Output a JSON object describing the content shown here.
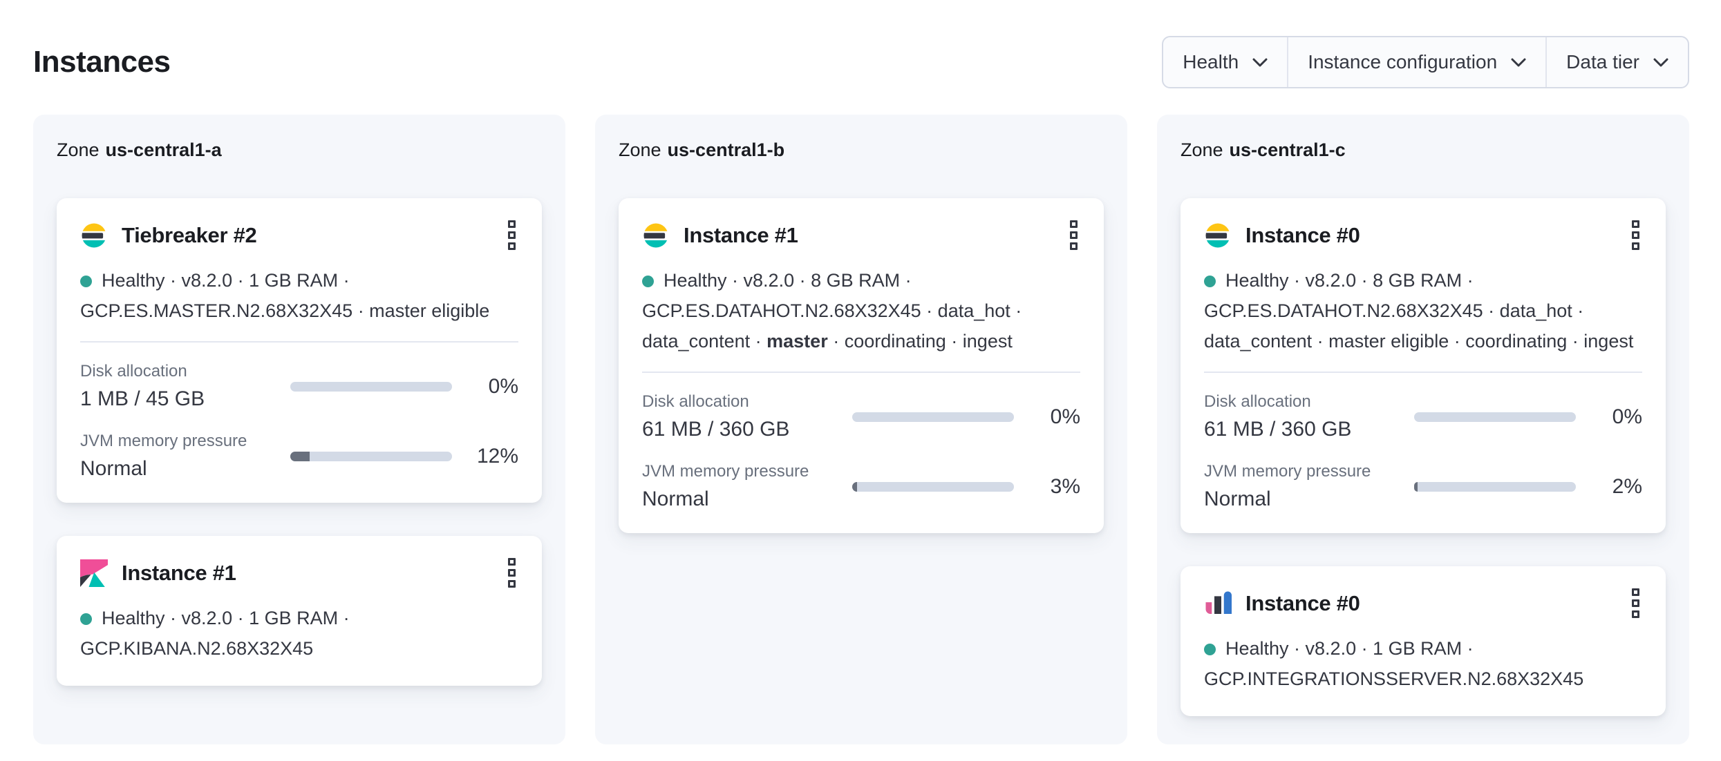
{
  "header": {
    "title": "Instances"
  },
  "filters": [
    {
      "label": "Health"
    },
    {
      "label": "Instance configuration"
    },
    {
      "label": "Data tier"
    }
  ],
  "colors": {
    "healthy_dot": "#2fa294",
    "progress_track": "#d3dae6",
    "progress_fill": "#69707d",
    "panel_background": "#f5f7fb",
    "elastic_yellow": "#fec514",
    "elastic_dark": "#343741",
    "elastic_teal": "#00bfb3",
    "kibana_pink": "#f04e98",
    "integrations_pink": "#e05c97",
    "integrations_blue": "#3377cc"
  },
  "zones": [
    {
      "label_prefix": "Zone",
      "name": "us-central1-a",
      "cards": [
        {
          "icon": "elasticsearch-logo",
          "title": "Tiebreaker #2",
          "status_lines": [
            "Healthy · v8.2.0 · 1 GB RAM ·",
            "GCP.ES.MASTER.N2.68X32X45 · master eligible"
          ],
          "metrics": {
            "disk": {
              "label": "Disk allocation",
              "value": "1 MB / 45 GB",
              "percent": "0%",
              "fraction": 0
            },
            "jvm": {
              "label": "JVM memory pressure",
              "value": "Normal",
              "percent": "12%",
              "fraction": 12
            }
          }
        },
        {
          "icon": "kibana-logo",
          "title": "Instance #1",
          "status_lines": [
            "Healthy · v8.2.0 · 1 GB RAM ·",
            "GCP.KIBANA.N2.68X32X45"
          ]
        }
      ]
    },
    {
      "label_prefix": "Zone",
      "name": "us-central1-b",
      "cards": [
        {
          "icon": "elasticsearch-logo",
          "title": "Instance #1",
          "status_lines": [
            "Healthy · v8.2.0 · 8 GB RAM ·",
            "GCP.ES.DATAHOT.N2.68X32X45 · data_hot ·"
          ],
          "status_extra": {
            "pre": "data_content · ",
            "bold": "master",
            "post": " · coordinating · ingest"
          },
          "metrics": {
            "disk": {
              "label": "Disk allocation",
              "value": "61 MB / 360 GB",
              "percent": "0%",
              "fraction": 0
            },
            "jvm": {
              "label": "JVM memory pressure",
              "value": "Normal",
              "percent": "3%",
              "fraction": 3
            }
          }
        }
      ]
    },
    {
      "label_prefix": "Zone",
      "name": "us-central1-c",
      "cards": [
        {
          "icon": "elasticsearch-logo",
          "title": "Instance #0",
          "status_lines": [
            "Healthy · v8.2.0 · 8 GB RAM ·",
            "GCP.ES.DATAHOT.N2.68X32X45 · data_hot ·",
            "data_content · master eligible · coordinating · ingest"
          ],
          "metrics": {
            "disk": {
              "label": "Disk allocation",
              "value": "61 MB / 360 GB",
              "percent": "0%",
              "fraction": 0
            },
            "jvm": {
              "label": "JVM memory pressure",
              "value": "Normal",
              "percent": "2%",
              "fraction": 2
            }
          }
        },
        {
          "icon": "integrations-server-logo",
          "title": "Instance #0",
          "status_lines": [
            "Healthy · v8.2.0 · 1 GB RAM ·",
            "GCP.INTEGRATIONSSERVER.N2.68X32X45"
          ]
        }
      ]
    }
  ]
}
